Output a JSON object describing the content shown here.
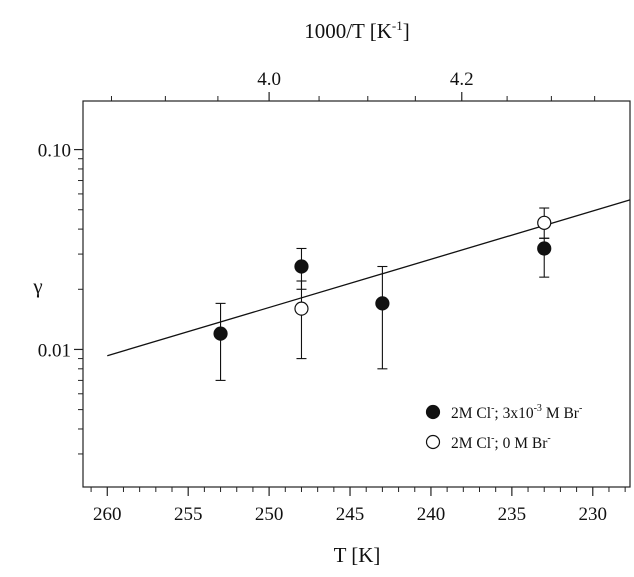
{
  "chart_data": {
    "type": "scatter",
    "xlabel": "T [K]",
    "x2label": {
      "main": "1000/T [K",
      "sup": "-1",
      "close": "]"
    },
    "ylabel": "γ",
    "x_axis": {
      "reversed": true,
      "xlim": [
        261.5,
        227.7
      ],
      "ticks": [
        260,
        255,
        250,
        245,
        240,
        235,
        230
      ],
      "tick_labels": [
        "260",
        "255",
        "250",
        "245",
        "240",
        "235",
        "230"
      ]
    },
    "x2_axis": {
      "quantity": "1000/T",
      "ticks": [
        4.0,
        4.2
      ],
      "tick_labels": [
        "4.0",
        "4.2"
      ],
      "minor_ticks": [
        3.85,
        3.9,
        3.95,
        4.05,
        4.1,
        4.15,
        4.25,
        4.3,
        4.35
      ]
    },
    "y_axis": {
      "scale": "log",
      "ylim": [
        0.00205,
        0.175
      ],
      "ticks": [
        0.01,
        0.1
      ],
      "tick_labels": [
        "0.01",
        "0.10"
      ]
    },
    "series": [
      {
        "name": {
          "a": "2M Cl",
          "a_sup": "-",
          "b": "; 3x10",
          "b_sup": "-3",
          "c": " M Br",
          "c_sup": "-"
        },
        "marker": "filled-circle",
        "points": [
          {
            "x": 253,
            "y": 0.012,
            "y_low": 0.007,
            "y_high": 0.017
          },
          {
            "x": 248,
            "y": 0.026,
            "y_low": 0.02,
            "y_high": 0.032
          },
          {
            "x": 243,
            "y": 0.017,
            "y_low": 0.008,
            "y_high": 0.026
          },
          {
            "x": 233,
            "y": 0.032,
            "y_low": 0.023,
            "y_high": 0.036
          }
        ]
      },
      {
        "name": {
          "a": "2M Cl",
          "a_sup": "-",
          "b": "; 0 M Br",
          "b_sup": "-"
        },
        "marker": "open-circle",
        "points": [
          {
            "x": 248,
            "y": 0.016,
            "y_low": 0.009,
            "y_high": 0.022
          },
          {
            "x": 233,
            "y": 0.043,
            "y_low": 0.036,
            "y_high": 0.051
          }
        ]
      }
    ],
    "fit_line": {
      "x": [
        260,
        227.7
      ],
      "y": [
        0.0093,
        0.056
      ]
    },
    "grid": false,
    "legend": "bottom-right"
  }
}
